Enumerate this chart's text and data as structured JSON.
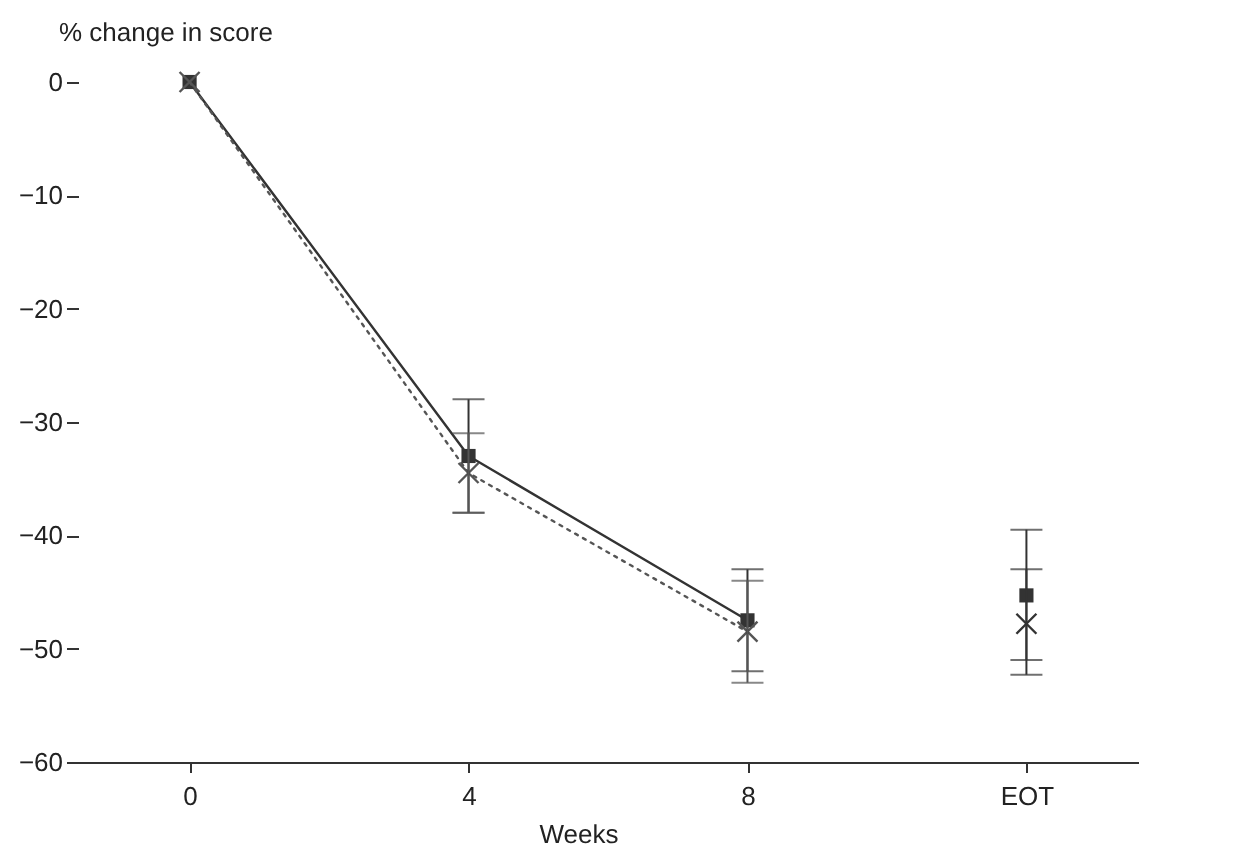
{
  "chart_data": {
    "type": "line",
    "xlabel": "Weeks",
    "ylabel": "% change in score",
    "categories": [
      "0",
      "4",
      "8",
      "EOT"
    ],
    "ylim": [
      -60,
      0
    ],
    "yticks": [
      -60,
      -50,
      -40,
      -30,
      -20,
      -10,
      0
    ],
    "grid": false,
    "series": [
      {
        "type": "line",
        "color": "#333333",
        "marker": "square",
        "line_style": "solid",
        "values": [
          0,
          -33,
          -47.5,
          null
        ],
        "errors": [
          null,
          5,
          [
            -52,
            -43
          ],
          null
        ]
      },
      {
        "type": "line",
        "color": "#555555",
        "marker": "cross",
        "line_style": "dotted",
        "values": [
          0,
          -34.5,
          -48.5,
          null
        ],
        "errors": [
          null,
          [
            -38,
            -31
          ],
          [
            -53,
            -44
          ],
          null
        ]
      },
      {
        "type": "scatter",
        "color": "#333333",
        "marker": "square",
        "values": [
          null,
          null,
          null,
          -45.3
        ],
        "errors": [
          null,
          null,
          null,
          [
            -51,
            -39.5
          ]
        ]
      },
      {
        "type": "scatter",
        "color": "#333333",
        "marker": "cross",
        "values": [
          null,
          null,
          null,
          -47.8
        ],
        "errors": [
          null,
          null,
          null,
          [
            -52.3,
            -43
          ]
        ]
      }
    ]
  }
}
